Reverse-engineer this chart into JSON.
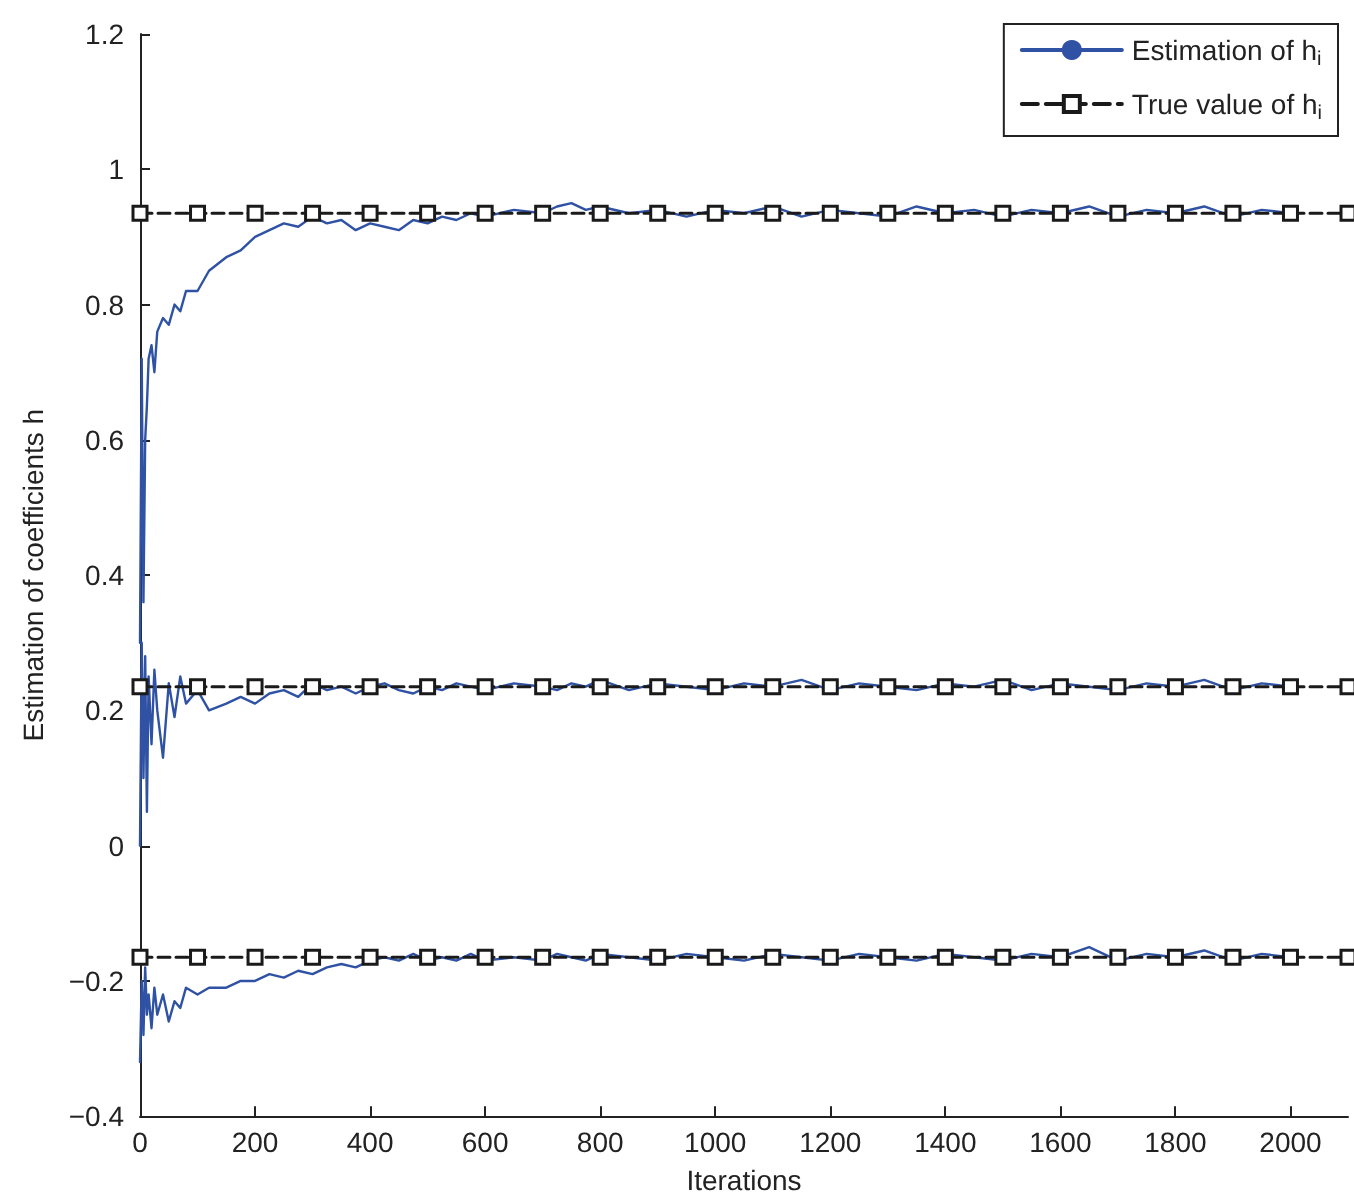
{
  "chart_data": {
    "type": "line",
    "xlabel": "Iterations",
    "ylabel": "Estimation of coefficients h",
    "xlim": [
      0,
      2100
    ],
    "xticks": [
      0,
      200,
      400,
      600,
      800,
      1000,
      1200,
      1400,
      1600,
      1800,
      2000
    ],
    "ylim": [
      -0.4,
      1.2
    ],
    "yticks": [
      -0.4,
      -0.2,
      0,
      0.2,
      0.4,
      0.6,
      0.8,
      1,
      1.2
    ],
    "grid": false,
    "legend": "top right",
    "series": [
      {
        "name": "Estimation of h$_{i}$",
        "color": "#2f52a4",
        "marker": "none",
        "line_style": "solid",
        "x": [
          0,
          3,
          6,
          9,
          12,
          15,
          20,
          25,
          30,
          40,
          50,
          60,
          70,
          80,
          100,
          120,
          150,
          175,
          200,
          225,
          250,
          275,
          300,
          325,
          350,
          375,
          400,
          425,
          450,
          475,
          500,
          525,
          550,
          575,
          600,
          650,
          700,
          725,
          750,
          775,
          800,
          850,
          900,
          950,
          1000,
          1050,
          1100,
          1150,
          1200,
          1250,
          1300,
          1350,
          1400,
          1450,
          1500,
          1550,
          1600,
          1650,
          1700,
          1750,
          1800,
          1850,
          1900,
          1950,
          2000
        ],
        "values": [
          0.3,
          0.72,
          0.36,
          0.6,
          0.65,
          0.72,
          0.74,
          0.7,
          0.76,
          0.78,
          0.77,
          0.8,
          0.79,
          0.82,
          0.82,
          0.85,
          0.87,
          0.88,
          0.9,
          0.91,
          0.92,
          0.915,
          0.93,
          0.92,
          0.925,
          0.91,
          0.92,
          0.915,
          0.91,
          0.925,
          0.92,
          0.93,
          0.925,
          0.935,
          0.93,
          0.94,
          0.935,
          0.945,
          0.95,
          0.94,
          0.945,
          0.935,
          0.94,
          0.93,
          0.94,
          0.935,
          0.945,
          0.93,
          0.94,
          0.935,
          0.93,
          0.945,
          0.935,
          0.94,
          0.93,
          0.94,
          0.935,
          0.945,
          0.93,
          0.94,
          0.935,
          0.945,
          0.93,
          0.94,
          0.935
        ]
      },
      {
        "color": "#2f52a4",
        "marker": "none",
        "line_style": "solid",
        "x": [
          0,
          3,
          6,
          9,
          12,
          15,
          20,
          25,
          30,
          40,
          50,
          60,
          70,
          80,
          100,
          120,
          150,
          175,
          200,
          225,
          250,
          275,
          300,
          325,
          350,
          375,
          400,
          425,
          450,
          475,
          500,
          525,
          550,
          575,
          600,
          650,
          700,
          725,
          750,
          775,
          800,
          850,
          900,
          950,
          1000,
          1050,
          1100,
          1150,
          1200,
          1250,
          1300,
          1350,
          1400,
          1450,
          1500,
          1550,
          1600,
          1650,
          1700,
          1750,
          1800,
          1850,
          1900,
          1950,
          2000
        ],
        "values": [
          0,
          0.3,
          0.1,
          0.28,
          0.05,
          0.25,
          0.15,
          0.26,
          0.2,
          0.13,
          0.24,
          0.19,
          0.25,
          0.21,
          0.23,
          0.2,
          0.21,
          0.22,
          0.21,
          0.225,
          0.23,
          0.22,
          0.24,
          0.23,
          0.235,
          0.225,
          0.235,
          0.24,
          0.23,
          0.225,
          0.235,
          0.23,
          0.24,
          0.235,
          0.23,
          0.24,
          0.235,
          0.23,
          0.24,
          0.235,
          0.245,
          0.23,
          0.24,
          0.235,
          0.23,
          0.24,
          0.235,
          0.245,
          0.23,
          0.24,
          0.235,
          0.23,
          0.24,
          0.235,
          0.245,
          0.23,
          0.24,
          0.235,
          0.23,
          0.24,
          0.235,
          0.245,
          0.23,
          0.24,
          0.235
        ]
      },
      {
        "color": "#2f52a4",
        "marker": "none",
        "line_style": "solid",
        "x": [
          0,
          3,
          6,
          9,
          12,
          15,
          20,
          25,
          30,
          40,
          50,
          60,
          70,
          80,
          100,
          120,
          150,
          175,
          200,
          225,
          250,
          275,
          300,
          325,
          350,
          375,
          400,
          425,
          450,
          475,
          500,
          525,
          550,
          575,
          600,
          650,
          700,
          725,
          750,
          775,
          800,
          850,
          900,
          950,
          1000,
          1050,
          1100,
          1150,
          1200,
          1250,
          1300,
          1350,
          1400,
          1450,
          1500,
          1550,
          1600,
          1650,
          1700,
          1750,
          1800,
          1850,
          1900,
          1950,
          2000
        ],
        "values": [
          -0.32,
          -0.2,
          -0.28,
          -0.18,
          -0.25,
          -0.22,
          -0.27,
          -0.21,
          -0.25,
          -0.22,
          -0.26,
          -0.23,
          -0.24,
          -0.21,
          -0.22,
          -0.21,
          -0.21,
          -0.2,
          -0.2,
          -0.19,
          -0.195,
          -0.185,
          -0.19,
          -0.18,
          -0.175,
          -0.18,
          -0.17,
          -0.165,
          -0.17,
          -0.16,
          -0.17,
          -0.165,
          -0.17,
          -0.16,
          -0.17,
          -0.165,
          -0.17,
          -0.16,
          -0.165,
          -0.17,
          -0.16,
          -0.165,
          -0.17,
          -0.16,
          -0.165,
          -0.17,
          -0.16,
          -0.165,
          -0.17,
          -0.16,
          -0.165,
          -0.17,
          -0.16,
          -0.165,
          -0.17,
          -0.16,
          -0.165,
          -0.15,
          -0.17,
          -0.16,
          -0.165,
          -0.155,
          -0.17,
          -0.16,
          -0.165
        ]
      },
      {
        "name": "True value of h$_{i}$",
        "color": "#1a1a1a",
        "marker": "square",
        "line_style": "dashed",
        "x": [
          0,
          100,
          200,
          300,
          400,
          500,
          600,
          700,
          800,
          900,
          1000,
          1100,
          1200,
          1300,
          1400,
          1500,
          1600,
          1700,
          1800,
          1900,
          2000,
          2100
        ],
        "values": [
          0.935,
          0.935,
          0.935,
          0.935,
          0.935,
          0.935,
          0.935,
          0.935,
          0.935,
          0.935,
          0.935,
          0.935,
          0.935,
          0.935,
          0.935,
          0.935,
          0.935,
          0.935,
          0.935,
          0.935,
          0.935,
          0.935
        ]
      },
      {
        "color": "#1a1a1a",
        "marker": "square",
        "line_style": "dashed",
        "x": [
          0,
          100,
          200,
          300,
          400,
          500,
          600,
          700,
          800,
          900,
          1000,
          1100,
          1200,
          1300,
          1400,
          1500,
          1600,
          1700,
          1800,
          1900,
          2000,
          2100
        ],
        "values": [
          0.235,
          0.235,
          0.235,
          0.235,
          0.235,
          0.235,
          0.235,
          0.235,
          0.235,
          0.235,
          0.235,
          0.235,
          0.235,
          0.235,
          0.235,
          0.235,
          0.235,
          0.235,
          0.235,
          0.235,
          0.235,
          0.235
        ]
      },
      {
        "color": "#1a1a1a",
        "marker": "square",
        "line_style": "dashed",
        "x": [
          0,
          100,
          200,
          300,
          400,
          500,
          600,
          700,
          800,
          900,
          1000,
          1100,
          1200,
          1300,
          1400,
          1500,
          1600,
          1700,
          1800,
          1900,
          2000,
          2100
        ],
        "values": [
          -0.165,
          -0.165,
          -0.165,
          -0.165,
          -0.165,
          -0.165,
          -0.165,
          -0.165,
          -0.165,
          -0.165,
          -0.165,
          -0.165,
          -0.165,
          -0.165,
          -0.165,
          -0.165,
          -0.165,
          -0.165,
          -0.165,
          -0.165,
          -0.165,
          -0.165
        ]
      }
    ]
  }
}
